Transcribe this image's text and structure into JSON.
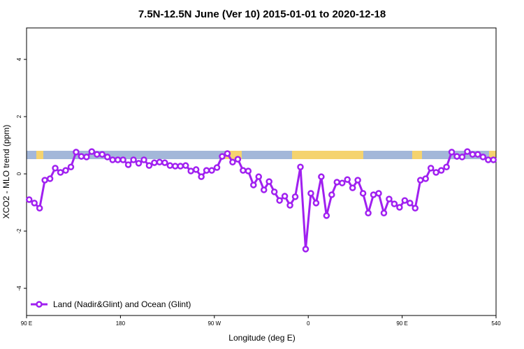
{
  "chart_data": {
    "type": "line",
    "title": "7.5N-12.5N June (Ver 10)   2015-01-01 to 2020-12-18",
    "x_label": "Longitude (deg E)",
    "y_label": "XCO2 - MLO trend (ppm)",
    "xlim": [
      90,
      540
    ],
    "ylim": [
      -4.95,
      5.1
    ],
    "xticks": [
      {
        "value": 90,
        "label": "90 E"
      },
      180,
      {
        "value": 270,
        "label": "90 W"
      },
      {
        "value": 360,
        "label": "0"
      },
      {
        "value": 450,
        "label": "90 E"
      },
      540
    ],
    "yticks": [
      -4,
      -2,
      0,
      2,
      4
    ],
    "legend": "bottom-left",
    "x": [
      92.5,
      97.5,
      102.5,
      107.5,
      112.5,
      117.5,
      122.5,
      127.5,
      132.5,
      137.5,
      142.5,
      147.5,
      152.5,
      157.5,
      162.5,
      167.5,
      172.5,
      177.5,
      182.5,
      187.5,
      192.5,
      197.5,
      202.5,
      207.5,
      212.5,
      217.5,
      222.5,
      227.5,
      232.5,
      237.5,
      242.5,
      247.5,
      252.5,
      257.5,
      262.5,
      267.5,
      272.5,
      277.5,
      282.5,
      287.5,
      292.5,
      297.5,
      302.5,
      307.5,
      312.5,
      317.5,
      322.5,
      327.5,
      332.5,
      337.5,
      342.5,
      347.5,
      352.5,
      357.5,
      362.5,
      367.5,
      372.5,
      377.5,
      382.5,
      387.5,
      392.5,
      397.5,
      402.5,
      407.5,
      412.5,
      417.5,
      422.5,
      427.5,
      432.5,
      437.5,
      442.5,
      447.5,
      452.5,
      457.5,
      462.5,
      467.5,
      472.5,
      477.5,
      482.5,
      487.5,
      492.5,
      497.5,
      502.5,
      507.5,
      512.5,
      517.5,
      522.5,
      527.5,
      532.5,
      537.5
    ],
    "series": [
      {
        "name": "Land (Nadir&Glint) and Ocean (Glint)",
        "color": "#a020f0",
        "values": [
          -0.9,
          -1.02,
          -1.2,
          -0.22,
          -0.17,
          0.2,
          0.05,
          0.12,
          0.24,
          0.76,
          0.61,
          0.59,
          0.78,
          0.68,
          0.68,
          0.59,
          0.49,
          0.49,
          0.49,
          0.32,
          0.49,
          0.37,
          0.49,
          0.29,
          0.39,
          0.41,
          0.39,
          0.29,
          0.27,
          0.27,
          0.29,
          0.1,
          0.15,
          -0.1,
          0.12,
          0.12,
          0.22,
          0.61,
          0.71,
          0.41,
          0.51,
          0.12,
          0.1,
          -0.39,
          -0.1,
          -0.56,
          -0.27,
          -0.63,
          -0.93,
          -0.78,
          -1.1,
          -0.8,
          0.24,
          -2.63,
          -0.68,
          -1.02,
          -0.1,
          -1.46,
          -0.73,
          -0.29,
          -0.32,
          -0.2,
          -0.49,
          -0.22,
          -0.68,
          -1.37,
          -0.73,
          -0.68,
          -1.37,
          -0.88,
          -1.05,
          -1.17,
          -0.93,
          -1.02,
          -1.2,
          -0.22,
          -0.17,
          0.2,
          0.05,
          0.12,
          0.24,
          0.76,
          0.61,
          0.59,
          0.78,
          0.68,
          0.68,
          0.59,
          0.49,
          0.49
        ]
      }
    ]
  }
}
